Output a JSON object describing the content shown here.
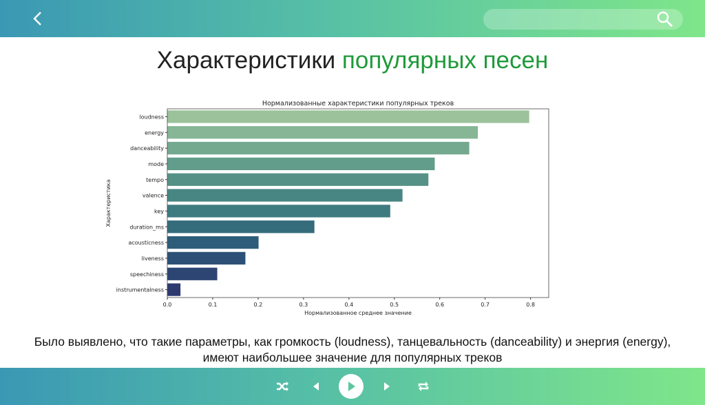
{
  "header": {
    "back_icon": "chevron-left-icon",
    "search_icon": "search-icon"
  },
  "title": {
    "part1": "Характеристики ",
    "part2": "популярных песен",
    "accent": "#1f9a3a"
  },
  "chart_data": {
    "type": "bar",
    "orientation": "horizontal",
    "title": "Нормализованные характеристики популярных треков",
    "xlabel": "Нормализованное среднее значение",
    "ylabel": "Характеристика",
    "categories": [
      "loudness",
      "energy",
      "danceability",
      "mode",
      "tempo",
      "valence",
      "key",
      "duration_ms",
      "acousticness",
      "liveness",
      "speechiness",
      "instrumentalness"
    ],
    "values": [
      0.797,
      0.684,
      0.665,
      0.589,
      0.575,
      0.518,
      0.491,
      0.324,
      0.201,
      0.172,
      0.11,
      0.029
    ],
    "xlim": [
      0,
      0.84
    ],
    "xticks": [
      "0.0",
      "0.1",
      "0.2",
      "0.3",
      "0.4",
      "0.5",
      "0.6",
      "0.7",
      "0.8"
    ],
    "colors": [
      "#9bc29a",
      "#86b695",
      "#74a990",
      "#629c8b",
      "#559187",
      "#488683",
      "#3e7b80",
      "#346c7c",
      "#2e5d79",
      "#2d5176",
      "#2d4573",
      "#2c3a70"
    ],
    "grid": false
  },
  "caption": {
    "line1": "Было выявлено, что такие параметры, как громкость (loudness), танцевальность (danceability) и энергия (energy),",
    "line2": "имеют наибольшее значение для популярных треков"
  },
  "player": {
    "icons": [
      "shuffle-icon",
      "previous-icon",
      "play-icon",
      "next-icon",
      "repeat-icon"
    ]
  }
}
